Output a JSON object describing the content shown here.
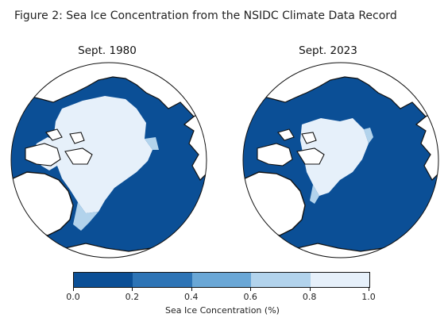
{
  "figure": {
    "title": "Figure 2: Sea Ice Concentration from the NSIDC Climate Data Record"
  },
  "panels": [
    {
      "title": "Sept. 1980"
    },
    {
      "title": "Sept. 2023"
    }
  ],
  "colorbar": {
    "label": "Sea Ice Concentration (%)",
    "ticks": [
      "0.0",
      "0.2",
      "0.4",
      "0.6",
      "0.8",
      "1.0"
    ],
    "bins": [
      {
        "range": [
          0.0,
          0.2
        ],
        "color": "#0b4f96"
      },
      {
        "range": [
          0.2,
          0.4
        ],
        "color": "#2d74b6"
      },
      {
        "range": [
          0.4,
          0.6
        ],
        "color": "#6aa7d6"
      },
      {
        "range": [
          0.6,
          0.8
        ],
        "color": "#b2d3ec"
      },
      {
        "range": [
          0.8,
          1.0
        ],
        "color": "#e6f0fa"
      }
    ]
  },
  "colors": {
    "ocean": "#0b4f96",
    "land": "#ffffff",
    "ice_high": "#e6f0fa",
    "ice_mid": "#b2d3ec",
    "ice_low": "#6aa7d6",
    "coast": "#111111"
  }
}
